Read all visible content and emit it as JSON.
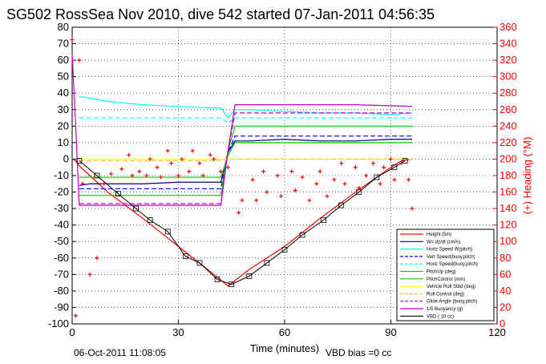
{
  "chart_data": {
    "type": "line",
    "title": "SG502 RossSea Nov 2010, dive 542 started 07-Jan-2011 04:56:35",
    "xlabel": "Time (minutes)",
    "ylabel": "",
    "y2label": "(+) Heading (°M)",
    "xlim": [
      0,
      120
    ],
    "ylim": [
      -100,
      80
    ],
    "y2lim": [
      0,
      360
    ],
    "x_ticks": [
      "0",
      "30",
      "60",
      "90",
      "120"
    ],
    "y_ticks": [
      "80",
      "70",
      "60",
      "50",
      "40",
      "30",
      "20",
      "10",
      "0",
      "-10",
      "-20",
      "-30",
      "-40",
      "-50",
      "-60",
      "-70",
      "-80",
      "-90",
      "-100"
    ],
    "y2_ticks": [
      "360",
      "340",
      "320",
      "300",
      "280",
      "260",
      "240",
      "220",
      "200",
      "180",
      "160",
      "140",
      "120",
      "100",
      "80",
      "60",
      "40",
      "20",
      "0"
    ],
    "grid": true,
    "legend_position": "bottom-right",
    "footer_left": "06-Oct-2011 11:08:05",
    "footer_right": "VBD bias =0 cc",
    "colors": {
      "height": "#ff0000",
      "w": "#000080",
      "horiz_speed_w_pitch": "#00ffff",
      "vert_speed_buoy": "#0000ff",
      "horiz_speed_buoy": "#00ffff",
      "pitch_up": "#00cc00",
      "pitch_control": "#00cc00",
      "vehicle_roll": "#ffff00",
      "roll_control": "#ffcc00",
      "glide_angle": "#c000c0",
      "buoyancy": "#c000c0",
      "vbd": "#000000",
      "heading": "#ff0000"
    },
    "legend": [
      "Height (5m)",
      "W= dz/dt (cm/s)",
      "Horiz Speed W(pitch)",
      "Vert Speed(buoy,pitch)",
      "Horiz Speed(buoy,pitch)",
      "PitchUp (deg)",
      "PitchControl (mm)",
      "Vehicle Roll Stbd (deg)",
      "Roll Control (deg)",
      "Glide Angle (buoy,pitch)",
      "1/5 Buoyancy (g)",
      "VBD ( 10 cc)"
    ],
    "series": [
      {
        "name": "Height (5m)",
        "axis": "left",
        "style": "line",
        "x": [
          0,
          1,
          2,
          5,
          10,
          20,
          30,
          40,
          44,
          50,
          60,
          70,
          80,
          90,
          93,
          96
        ],
        "y": [
          0,
          -1,
          -4,
          -10,
          -20,
          -36,
          -53,
          -70,
          -77,
          -67,
          -53,
          -36,
          -20,
          -5,
          -1,
          0
        ]
      },
      {
        "name": "W= dz/dt (cm/s)",
        "axis": "left",
        "style": "line",
        "x": [
          2,
          5,
          10,
          20,
          30,
          42,
          44,
          46,
          50,
          60,
          70,
          80,
          90,
          96
        ],
        "y": [
          -16,
          -15,
          -15,
          -15,
          -14,
          -14,
          4,
          11,
          11,
          12,
          11,
          11,
          12,
          12
        ]
      },
      {
        "name": "Horiz Speed W(pitch)",
        "axis": "left",
        "style": "line",
        "x": [
          2,
          5,
          10,
          20,
          30,
          40,
          42,
          44,
          46,
          50,
          60,
          70,
          80,
          90,
          96
        ],
        "y": [
          38,
          37,
          35,
          33,
          32,
          31,
          31,
          25,
          30,
          30,
          29,
          28,
          28,
          27,
          28
        ]
      },
      {
        "name": "Vert Speed(buoy,pitch)",
        "axis": "left",
        "style": "dashed",
        "x": [
          2,
          10,
          20,
          30,
          42,
          44,
          46,
          60,
          80,
          96
        ],
        "y": [
          -18,
          -18,
          -18,
          -18,
          -18,
          4,
          14,
          14,
          14,
          14
        ]
      },
      {
        "name": "Horiz Speed(buoy,pitch)",
        "axis": "left",
        "style": "dashed",
        "x": [
          2,
          10,
          20,
          30,
          42,
          44,
          46,
          60,
          80,
          96
        ],
        "y": [
          25,
          25,
          25,
          25,
          25,
          22,
          25,
          25,
          25,
          25
        ]
      },
      {
        "name": "PitchUp (deg)",
        "axis": "left",
        "style": "line",
        "x": [
          2,
          10,
          20,
          30,
          42,
          44,
          46,
          60,
          80,
          96
        ],
        "y": [
          -22,
          -22,
          -22,
          -22,
          -22,
          5,
          20,
          20,
          20,
          20
        ]
      },
      {
        "name": "PitchControl (mm)",
        "axis": "left",
        "style": "line",
        "x": [
          2,
          10,
          20,
          30,
          42,
          44,
          46,
          60,
          80,
          96
        ],
        "y": [
          -11,
          -11,
          -11,
          -11,
          -11,
          2,
          10,
          10,
          10,
          10
        ]
      },
      {
        "name": "Vehicle Roll Stbd (deg)",
        "axis": "left",
        "style": "line",
        "x": [
          2,
          20,
          40,
          46,
          70,
          96
        ],
        "y": [
          0,
          0,
          0,
          0,
          0,
          0
        ]
      },
      {
        "name": "Roll Control (deg)",
        "axis": "left",
        "style": "dashed",
        "x": [
          2,
          40,
          46,
          96
        ],
        "y": [
          -1,
          -1,
          0,
          0
        ]
      },
      {
        "name": "Glide Angle (buoy,pitch)",
        "axis": "left",
        "style": "dashed",
        "x": [
          2,
          10,
          20,
          30,
          42,
          44,
          46,
          60,
          80,
          96
        ],
        "y": [
          -27,
          -27,
          -27,
          -27,
          -27,
          5,
          28,
          28,
          28,
          28
        ]
      },
      {
        "name": "1/5 Buoyancy (g)",
        "axis": "left",
        "style": "line",
        "x": [
          0,
          1,
          2,
          10,
          20,
          30,
          42,
          44,
          46,
          60,
          80,
          96
        ],
        "y": [
          64,
          20,
          -28,
          -28,
          -28,
          -28,
          -28,
          5,
          33,
          33,
          33,
          32
        ]
      },
      {
        "name": "VBD ( 10 cc)",
        "axis": "left",
        "style": "markers",
        "x": [
          2,
          7,
          13,
          18,
          22,
          27,
          32,
          36,
          41,
          45,
          50,
          55,
          60,
          65,
          71,
          76,
          81,
          86,
          91,
          94
        ],
        "y": [
          -1,
          -10,
          -21,
          -30,
          -37,
          -44,
          -59,
          -63,
          -73,
          -76,
          -71,
          -63,
          -55,
          -46,
          -37,
          -28,
          -20,
          -11,
          -5,
          -1
        ]
      }
    ],
    "heading_series": {
      "name": "(+) Heading (°M)",
      "axis": "right",
      "x": [
        0,
        1,
        2,
        3,
        5,
        7,
        9,
        11,
        14,
        16,
        17,
        19,
        21,
        22,
        24,
        25,
        27,
        28,
        30,
        31,
        33,
        34,
        36,
        37,
        39,
        40,
        42,
        44,
        47,
        48,
        51,
        52,
        54,
        55,
        58,
        59,
        62,
        63,
        65,
        67,
        69,
        70,
        72,
        74,
        76,
        77,
        80,
        81,
        83,
        85,
        87,
        88,
        90,
        91,
        93,
        95,
        96
      ],
      "y": [
        345,
        10,
        320,
        170,
        60,
        80,
        170,
        182,
        188,
        205,
        180,
        185,
        180,
        200,
        190,
        178,
        210,
        195,
        180,
        200,
        185,
        210,
        195,
        180,
        205,
        200,
        185,
        190,
        135,
        150,
        175,
        150,
        185,
        160,
        180,
        155,
        185,
        162,
        178,
        150,
        170,
        185,
        155,
        175,
        195,
        170,
        190,
        165,
        180,
        195,
        170,
        190,
        200,
        175,
        195,
        175,
        140
      ]
    }
  }
}
